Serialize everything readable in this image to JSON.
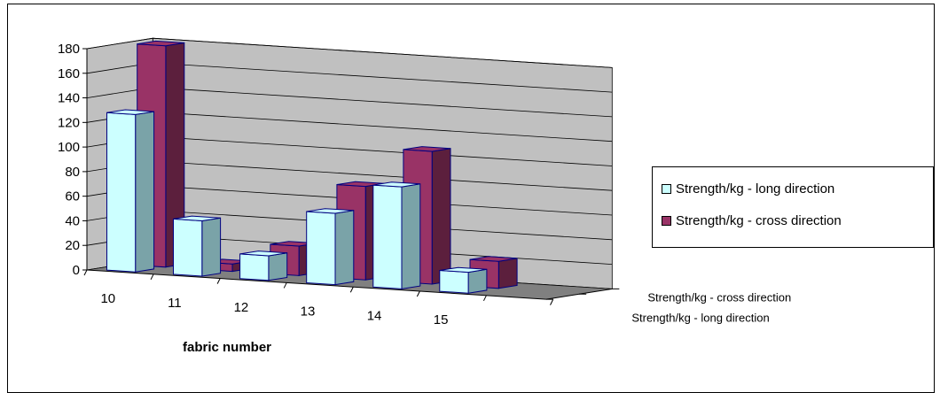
{
  "chart_data": {
    "type": "bar",
    "xlabel": "fabric number",
    "ylabel": "",
    "categories": [
      "10",
      "11",
      "12",
      "13",
      "14",
      "15"
    ],
    "ylim": [
      0,
      180
    ],
    "yticks": [
      0,
      20,
      40,
      60,
      80,
      100,
      120,
      140,
      160,
      180
    ],
    "grid": true,
    "legend_position": "right",
    "depth_labels": [
      "Strength/kg - cross direction",
      "Strength/kg - long direction"
    ],
    "series": [
      {
        "name": "Strength/kg - long direction",
        "values": [
          128,
          45,
          20,
          58,
          83,
          17
        ],
        "color": "#ccffff",
        "side_color": "#7aa3a8"
      },
      {
        "name": "Strength/kg - cross direction",
        "values": [
          180,
          6,
          24,
          76,
          108,
          22
        ],
        "color": "#993366",
        "side_color": "#5c1f3d"
      }
    ],
    "colors": {
      "wall": "#c0c0c0",
      "floor": "#808080",
      "bar_edge": "#000080"
    }
  }
}
